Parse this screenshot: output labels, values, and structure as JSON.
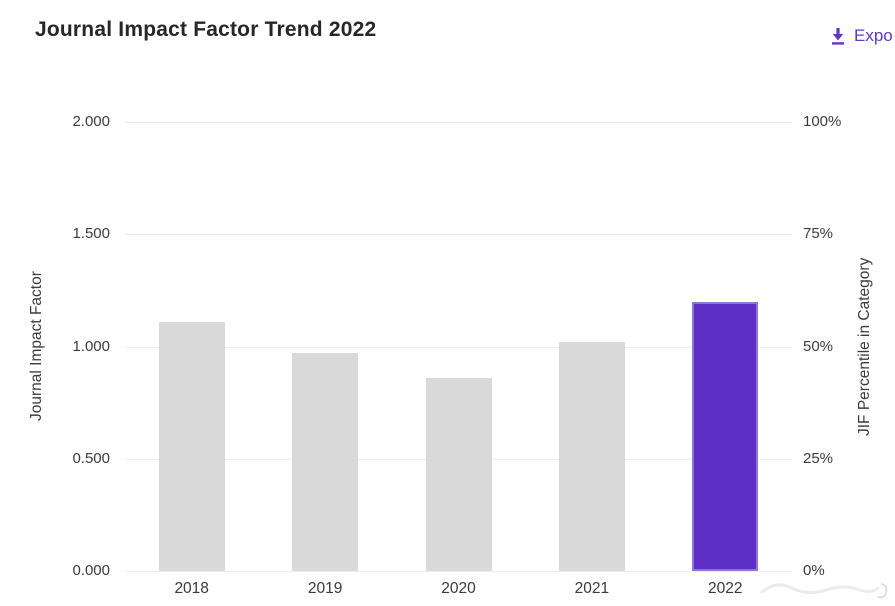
{
  "header": {
    "title": "Journal Impact Factor Trend 2022",
    "export_label": "Expo",
    "export_color": "#6136c6"
  },
  "chart_data": {
    "type": "bar",
    "title": "Journal Impact Factor Trend 2022",
    "categories": [
      "2018",
      "2019",
      "2020",
      "2021",
      "2022"
    ],
    "values": [
      1.11,
      0.97,
      0.86,
      1.02,
      1.2
    ],
    "highlight_category": "2022",
    "ylabel_left": "Journal Impact Factor",
    "ylabel_right": "JIF Percentile in Category",
    "left_axis_ticks": [
      "2.000",
      "1.500",
      "1.000",
      "0.500",
      "0.000"
    ],
    "right_axis_ticks": [
      "100%",
      "75%",
      "50%",
      "25%",
      "0%"
    ],
    "ylim_left": [
      0,
      2.0
    ],
    "ylim_right": [
      0,
      100
    ],
    "grid": true,
    "legend": "none",
    "bar_color": "#d9d9d9",
    "highlight_color": "#5c2ec6",
    "highlight_border_color": "#8e76d9",
    "gridline_color": "#ededed"
  }
}
